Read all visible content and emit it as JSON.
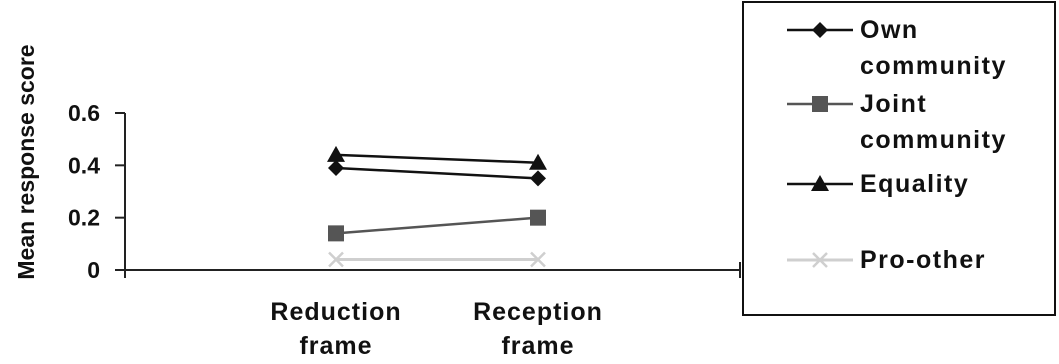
{
  "chart_data": {
    "type": "line",
    "title": "",
    "ylabel": "Mean response score",
    "xlabel": "",
    "categories": [
      [
        "Reduction",
        "frame"
      ],
      [
        "Reception",
        "frame"
      ]
    ],
    "ylim": [
      0,
      0.6
    ],
    "yticks": [
      "0",
      "0.2",
      "0.4",
      "0.6"
    ],
    "grid": false,
    "legend_position": "right",
    "series": [
      {
        "name": [
          "Own",
          "community"
        ],
        "values": [
          0.39,
          0.35
        ],
        "marker": "diamond",
        "color": "#111111"
      },
      {
        "name": [
          "Joint",
          "community"
        ],
        "values": [
          0.14,
          0.2
        ],
        "marker": "square",
        "color": "#555555"
      },
      {
        "name": [
          "Equality"
        ],
        "values": [
          0.44,
          0.41
        ],
        "marker": "triangle",
        "color": "#111111"
      },
      {
        "name": [
          "Pro-other"
        ],
        "values": [
          0.04,
          0.04
        ],
        "marker": "x",
        "color": "#cfcfcf"
      }
    ]
  }
}
